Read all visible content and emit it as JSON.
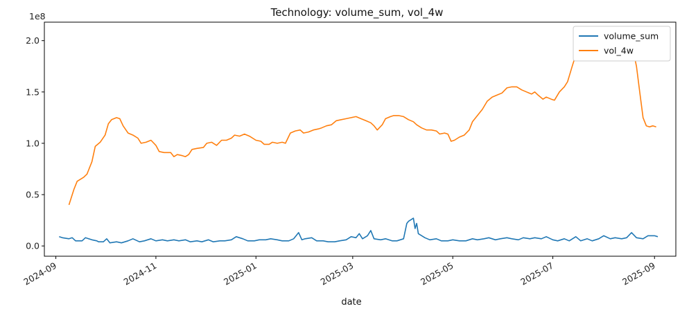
{
  "chart_data": {
    "type": "line",
    "title": "Technology: volume_sum, vol_4w",
    "xlabel": "date",
    "ylabel": "",
    "y_offset_text": "1e8",
    "y_scale": 100000000,
    "ylim": [
      -0.1,
      2.18
    ],
    "xlim": [
      "2024-08-25",
      "2025-09-14"
    ],
    "x_ticks": [
      "2024-09-01",
      "2024-11-01",
      "2025-01-01",
      "2025-03-01",
      "2025-05-01",
      "2025-07-01",
      "2025-09-01"
    ],
    "x_tick_labels": [
      "2024-09",
      "2024-11",
      "2025-01",
      "2025-03",
      "2025-05",
      "2025-07",
      "2025-09"
    ],
    "y_ticks": [
      0.0,
      0.5,
      1.0,
      1.5,
      2.0
    ],
    "y_tick_labels": [
      "0.0",
      "0.5",
      "1.0",
      "1.5",
      "2.0"
    ],
    "grid": false,
    "legend_position": "top-right",
    "series": [
      {
        "name": "volume_sum",
        "color": "#1f77b4",
        "points": [
          [
            "2024-09-03",
            0.09
          ],
          [
            "2024-09-05",
            0.08
          ],
          [
            "2024-09-09",
            0.07
          ],
          [
            "2024-09-11",
            0.08
          ],
          [
            "2024-09-13",
            0.05
          ],
          [
            "2024-09-17",
            0.05
          ],
          [
            "2024-09-19",
            0.08
          ],
          [
            "2024-09-23",
            0.06
          ],
          [
            "2024-09-26",
            0.05
          ],
          [
            "2024-09-27",
            0.04
          ],
          [
            "2024-09-30",
            0.04
          ],
          [
            "2024-10-02",
            0.07
          ],
          [
            "2024-10-04",
            0.03
          ],
          [
            "2024-10-08",
            0.04
          ],
          [
            "2024-10-11",
            0.03
          ],
          [
            "2024-10-15",
            0.05
          ],
          [
            "2024-10-18",
            0.07
          ],
          [
            "2024-10-22",
            0.04
          ],
          [
            "2024-10-25",
            0.05
          ],
          [
            "2024-10-29",
            0.07
          ],
          [
            "2024-11-01",
            0.05
          ],
          [
            "2024-11-05",
            0.06
          ],
          [
            "2024-11-08",
            0.05
          ],
          [
            "2024-11-12",
            0.06
          ],
          [
            "2024-11-15",
            0.05
          ],
          [
            "2024-11-19",
            0.06
          ],
          [
            "2024-11-22",
            0.04
          ],
          [
            "2024-11-26",
            0.05
          ],
          [
            "2024-11-29",
            0.04
          ],
          [
            "2024-12-03",
            0.06
          ],
          [
            "2024-12-06",
            0.04
          ],
          [
            "2024-12-10",
            0.05
          ],
          [
            "2024-12-13",
            0.05
          ],
          [
            "2024-12-17",
            0.06
          ],
          [
            "2024-12-20",
            0.09
          ],
          [
            "2024-12-24",
            0.07
          ],
          [
            "2024-12-27",
            0.05
          ],
          [
            "2024-12-31",
            0.05
          ],
          [
            "2025-01-03",
            0.06
          ],
          [
            "2025-01-07",
            0.06
          ],
          [
            "2025-01-10",
            0.07
          ],
          [
            "2025-01-14",
            0.06
          ],
          [
            "2025-01-17",
            0.05
          ],
          [
            "2025-01-21",
            0.05
          ],
          [
            "2025-01-24",
            0.07
          ],
          [
            "2025-01-27",
            0.13
          ],
          [
            "2025-01-29",
            0.06
          ],
          [
            "2025-01-31",
            0.07
          ],
          [
            "2025-02-04",
            0.08
          ],
          [
            "2025-02-07",
            0.05
          ],
          [
            "2025-02-11",
            0.05
          ],
          [
            "2025-02-14",
            0.04
          ],
          [
            "2025-02-18",
            0.04
          ],
          [
            "2025-02-21",
            0.05
          ],
          [
            "2025-02-25",
            0.06
          ],
          [
            "2025-02-28",
            0.09
          ],
          [
            "2025-03-03",
            0.08
          ],
          [
            "2025-03-05",
            0.12
          ],
          [
            "2025-03-07",
            0.07
          ],
          [
            "2025-03-10",
            0.1
          ],
          [
            "2025-03-12",
            0.15
          ],
          [
            "2025-03-14",
            0.07
          ],
          [
            "2025-03-18",
            0.06
          ],
          [
            "2025-03-21",
            0.07
          ],
          [
            "2025-03-25",
            0.05
          ],
          [
            "2025-03-28",
            0.05
          ],
          [
            "2025-04-01",
            0.07
          ],
          [
            "2025-04-03",
            0.22
          ],
          [
            "2025-04-04",
            0.24
          ],
          [
            "2025-04-07",
            0.27
          ],
          [
            "2025-04-08",
            0.17
          ],
          [
            "2025-04-09",
            0.22
          ],
          [
            "2025-04-10",
            0.12
          ],
          [
            "2025-04-14",
            0.08
          ],
          [
            "2025-04-17",
            0.06
          ],
          [
            "2025-04-21",
            0.07
          ],
          [
            "2025-04-24",
            0.05
          ],
          [
            "2025-04-28",
            0.05
          ],
          [
            "2025-05-01",
            0.06
          ],
          [
            "2025-05-05",
            0.05
          ],
          [
            "2025-05-09",
            0.05
          ],
          [
            "2025-05-13",
            0.07
          ],
          [
            "2025-05-16",
            0.06
          ],
          [
            "2025-05-20",
            0.07
          ],
          [
            "2025-05-23",
            0.08
          ],
          [
            "2025-05-27",
            0.06
          ],
          [
            "2025-05-30",
            0.07
          ],
          [
            "2025-06-03",
            0.08
          ],
          [
            "2025-06-06",
            0.07
          ],
          [
            "2025-06-10",
            0.06
          ],
          [
            "2025-06-13",
            0.08
          ],
          [
            "2025-06-17",
            0.07
          ],
          [
            "2025-06-20",
            0.08
          ],
          [
            "2025-06-24",
            0.07
          ],
          [
            "2025-06-27",
            0.09
          ],
          [
            "2025-07-01",
            0.06
          ],
          [
            "2025-07-04",
            0.05
          ],
          [
            "2025-07-08",
            0.07
          ],
          [
            "2025-07-11",
            0.05
          ],
          [
            "2025-07-15",
            0.09
          ],
          [
            "2025-07-18",
            0.05
          ],
          [
            "2025-07-22",
            0.07
          ],
          [
            "2025-07-25",
            0.05
          ],
          [
            "2025-07-29",
            0.07
          ],
          [
            "2025-08-01",
            0.1
          ],
          [
            "2025-08-05",
            0.07
          ],
          [
            "2025-08-08",
            0.08
          ],
          [
            "2025-08-12",
            0.07
          ],
          [
            "2025-08-15",
            0.08
          ],
          [
            "2025-08-18",
            0.13
          ],
          [
            "2025-08-21",
            0.08
          ],
          [
            "2025-08-25",
            0.07
          ],
          [
            "2025-08-28",
            0.1
          ],
          [
            "2025-09-01",
            0.1
          ],
          [
            "2025-09-03",
            0.09
          ]
        ]
      },
      {
        "name": "vol_4w",
        "color": "#ff7f0e",
        "points": [
          [
            "2024-09-09",
            0.4
          ],
          [
            "2024-09-12",
            0.55
          ],
          [
            "2024-09-14",
            0.63
          ],
          [
            "2024-09-18",
            0.67
          ],
          [
            "2024-09-20",
            0.7
          ],
          [
            "2024-09-23",
            0.82
          ],
          [
            "2024-09-25",
            0.97
          ],
          [
            "2024-09-28",
            1.01
          ],
          [
            "2024-10-01",
            1.08
          ],
          [
            "2024-10-03",
            1.19
          ],
          [
            "2024-10-05",
            1.23
          ],
          [
            "2024-10-08",
            1.25
          ],
          [
            "2024-10-10",
            1.24
          ],
          [
            "2024-10-12",
            1.17
          ],
          [
            "2024-10-15",
            1.1
          ],
          [
            "2024-10-18",
            1.08
          ],
          [
            "2024-10-21",
            1.05
          ],
          [
            "2024-10-23",
            1.0
          ],
          [
            "2024-10-26",
            1.01
          ],
          [
            "2024-10-29",
            1.03
          ],
          [
            "2024-11-01",
            0.98
          ],
          [
            "2024-11-03",
            0.92
          ],
          [
            "2024-11-06",
            0.91
          ],
          [
            "2024-11-10",
            0.91
          ],
          [
            "2024-11-12",
            0.87
          ],
          [
            "2024-11-14",
            0.89
          ],
          [
            "2024-11-17",
            0.88
          ],
          [
            "2024-11-19",
            0.87
          ],
          [
            "2024-11-21",
            0.89
          ],
          [
            "2024-11-23",
            0.94
          ],
          [
            "2024-11-26",
            0.95
          ],
          [
            "2024-11-30",
            0.96
          ],
          [
            "2024-12-02",
            1.0
          ],
          [
            "2024-12-05",
            1.01
          ],
          [
            "2024-12-08",
            0.98
          ],
          [
            "2024-12-11",
            1.03
          ],
          [
            "2024-12-14",
            1.03
          ],
          [
            "2024-12-17",
            1.05
          ],
          [
            "2024-12-19",
            1.08
          ],
          [
            "2024-12-22",
            1.07
          ],
          [
            "2024-12-25",
            1.09
          ],
          [
            "2024-12-28",
            1.07
          ],
          [
            "2025-01-01",
            1.03
          ],
          [
            "2025-01-04",
            1.02
          ],
          [
            "2025-01-06",
            0.99
          ],
          [
            "2025-01-09",
            0.99
          ],
          [
            "2025-01-11",
            1.01
          ],
          [
            "2025-01-14",
            1.0
          ],
          [
            "2025-01-17",
            1.01
          ],
          [
            "2025-01-19",
            1.0
          ],
          [
            "2025-01-22",
            1.1
          ],
          [
            "2025-01-25",
            1.12
          ],
          [
            "2025-01-28",
            1.13
          ],
          [
            "2025-01-30",
            1.1
          ],
          [
            "2025-02-02",
            1.11
          ],
          [
            "2025-02-05",
            1.13
          ],
          [
            "2025-02-08",
            1.14
          ],
          [
            "2025-02-10",
            1.15
          ],
          [
            "2025-02-13",
            1.17
          ],
          [
            "2025-02-16",
            1.18
          ],
          [
            "2025-02-19",
            1.22
          ],
          [
            "2025-02-22",
            1.23
          ],
          [
            "2025-02-25",
            1.24
          ],
          [
            "2025-02-28",
            1.25
          ],
          [
            "2025-03-03",
            1.26
          ],
          [
            "2025-03-06",
            1.24
          ],
          [
            "2025-03-09",
            1.22
          ],
          [
            "2025-03-12",
            1.2
          ],
          [
            "2025-03-14",
            1.17
          ],
          [
            "2025-03-16",
            1.13
          ],
          [
            "2025-03-19",
            1.18
          ],
          [
            "2025-03-21",
            1.24
          ],
          [
            "2025-03-24",
            1.26
          ],
          [
            "2025-03-26",
            1.27
          ],
          [
            "2025-03-29",
            1.27
          ],
          [
            "2025-04-01",
            1.26
          ],
          [
            "2025-04-04",
            1.23
          ],
          [
            "2025-04-07",
            1.21
          ],
          [
            "2025-04-09",
            1.18
          ],
          [
            "2025-04-12",
            1.15
          ],
          [
            "2025-04-15",
            1.13
          ],
          [
            "2025-04-18",
            1.13
          ],
          [
            "2025-04-21",
            1.12
          ],
          [
            "2025-04-23",
            1.09
          ],
          [
            "2025-04-26",
            1.1
          ],
          [
            "2025-04-28",
            1.09
          ],
          [
            "2025-04-30",
            1.02
          ],
          [
            "2025-05-02",
            1.03
          ],
          [
            "2025-05-05",
            1.06
          ],
          [
            "2025-05-08",
            1.08
          ],
          [
            "2025-05-11",
            1.13
          ],
          [
            "2025-05-13",
            1.21
          ],
          [
            "2025-05-16",
            1.27
          ],
          [
            "2025-05-19",
            1.33
          ],
          [
            "2025-05-22",
            1.41
          ],
          [
            "2025-05-25",
            1.45
          ],
          [
            "2025-05-28",
            1.47
          ],
          [
            "2025-05-31",
            1.49
          ],
          [
            "2025-06-03",
            1.54
          ],
          [
            "2025-06-06",
            1.55
          ],
          [
            "2025-06-09",
            1.55
          ],
          [
            "2025-06-12",
            1.52
          ],
          [
            "2025-06-15",
            1.5
          ],
          [
            "2025-06-18",
            1.48
          ],
          [
            "2025-06-20",
            1.5
          ],
          [
            "2025-06-22",
            1.47
          ],
          [
            "2025-06-25",
            1.43
          ],
          [
            "2025-06-27",
            1.45
          ],
          [
            "2025-06-30",
            1.43
          ],
          [
            "2025-07-02",
            1.42
          ],
          [
            "2025-07-05",
            1.5
          ],
          [
            "2025-07-08",
            1.55
          ],
          [
            "2025-07-10",
            1.6
          ],
          [
            "2025-07-13",
            1.76
          ],
          [
            "2025-07-15",
            1.86
          ],
          [
            "2025-07-17",
            1.98
          ],
          [
            "2025-07-20",
            2.01
          ],
          [
            "2025-07-23",
            2.02
          ],
          [
            "2025-07-25",
            2.0
          ],
          [
            "2025-07-28",
            2.02
          ],
          [
            "2025-07-31",
            2.02
          ],
          [
            "2025-08-03",
            2.02
          ],
          [
            "2025-08-05",
            2.05
          ],
          [
            "2025-08-07",
            2.07
          ],
          [
            "2025-08-10",
            2.06
          ],
          [
            "2025-08-12",
            2.04
          ],
          [
            "2025-08-14",
            2.0
          ],
          [
            "2025-08-16",
            2.01
          ],
          [
            "2025-08-19",
            1.9
          ],
          [
            "2025-08-21",
            1.75
          ],
          [
            "2025-08-23",
            1.5
          ],
          [
            "2025-08-25",
            1.25
          ],
          [
            "2025-08-27",
            1.17
          ],
          [
            "2025-08-29",
            1.16
          ],
          [
            "2025-08-31",
            1.17
          ],
          [
            "2025-09-02",
            1.16
          ]
        ]
      }
    ]
  }
}
